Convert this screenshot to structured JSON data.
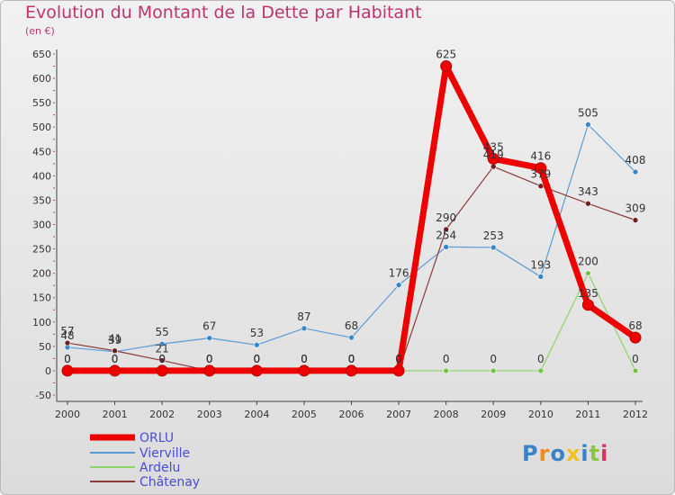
{
  "title": "Evolution du Montant de la Dette par Habitant",
  "unit": "(en €)",
  "brand": "Proxiti",
  "chart_data": {
    "type": "line",
    "title": "Evolution du Montant de la Dette par Habitant",
    "ylabel": "(en €)",
    "x": [
      "2000",
      "2001",
      "2002",
      "2003",
      "2004",
      "2005",
      "2006",
      "2007",
      "2008",
      "2009",
      "2010",
      "2011",
      "2012"
    ],
    "ylim": [
      -50,
      650
    ],
    "yticks": [
      -50,
      0,
      50,
      100,
      150,
      200,
      250,
      300,
      350,
      400,
      450,
      500,
      550,
      600,
      650
    ],
    "grid": false,
    "legend_position": "bottom-left",
    "series": [
      {
        "name": "Vierville",
        "color": "#5b9bd5",
        "point": "#3a87c8",
        "width": 1.2,
        "r": 3,
        "values": [
          48,
          39,
          55,
          67,
          53,
          87,
          68,
          176,
          254,
          253,
          193,
          505,
          408
        ]
      },
      {
        "name": "Ardelu",
        "color": "#8ed36b",
        "point": "#77c24e",
        "width": 1.2,
        "r": 3,
        "values": [
          0,
          0,
          0,
          0,
          0,
          0,
          0,
          0,
          0,
          0,
          0,
          200,
          0
        ]
      },
      {
        "name": "Châtenay",
        "color": "#8b3a3a",
        "point": "#6e1f1f",
        "width": 1.2,
        "r": 3,
        "values": [
          57,
          41,
          21,
          0,
          0,
          0,
          0,
          0,
          290,
          419,
          379,
          343,
          309
        ]
      },
      {
        "name": "ORLU",
        "color": "#ee0000",
        "point": "#ee0000",
        "width": 7,
        "r": 6,
        "values": [
          0,
          0,
          0,
          0,
          0,
          0,
          0,
          0,
          625,
          435,
          416,
          135,
          68
        ]
      }
    ],
    "legend": [
      "ORLU",
      "Vierville",
      "Ardelu",
      "Châtenay"
    ]
  }
}
